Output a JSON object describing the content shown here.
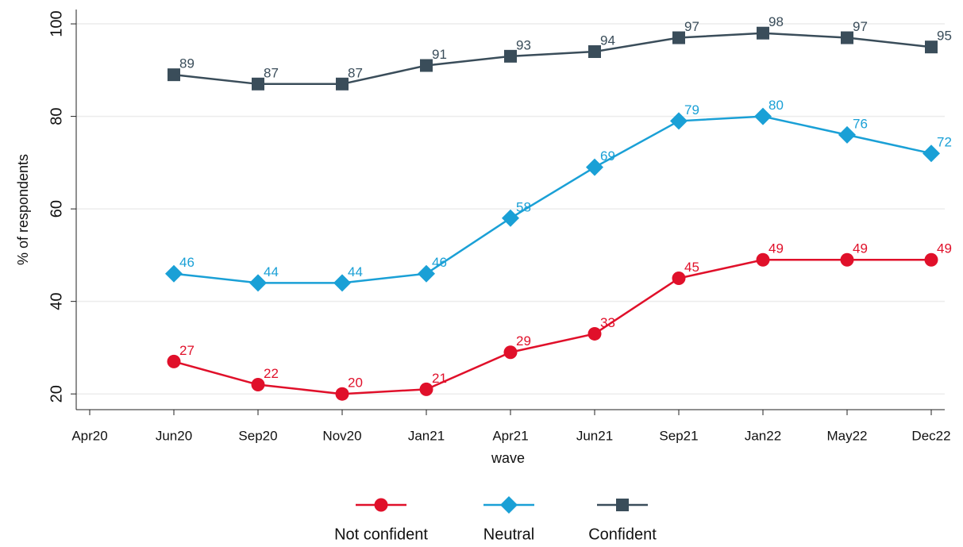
{
  "chart_data": {
    "type": "line",
    "x_label": "wave",
    "y_label": "% of respondents",
    "categories": [
      "Apr20",
      "Jun20",
      "Sep20",
      "Nov20",
      "Jan21",
      "Apr21",
      "Jun21",
      "Sep21",
      "Jan22",
      "May22",
      "Dec22"
    ],
    "series": [
      {
        "name": "Not confident",
        "color": "#e0102a",
        "marker": "circle",
        "values": [
          null,
          27,
          22,
          20,
          21,
          29,
          33,
          45,
          49,
          49,
          49
        ]
      },
      {
        "name": "Neutral",
        "color": "#1aa0d6",
        "marker": "diamond",
        "values": [
          null,
          46,
          44,
          44,
          46,
          58,
          69,
          79,
          80,
          76,
          72
        ]
      },
      {
        "name": "Confident",
        "color": "#3a4d5a",
        "marker": "square",
        "values": [
          null,
          89,
          87,
          87,
          91,
          93,
          94,
          97,
          98,
          97,
          95
        ]
      }
    ],
    "ylim": [
      16.6,
      103.1
    ],
    "yticks": [
      20,
      40,
      60,
      80,
      100
    ],
    "grid": true,
    "legend": "bottom"
  }
}
